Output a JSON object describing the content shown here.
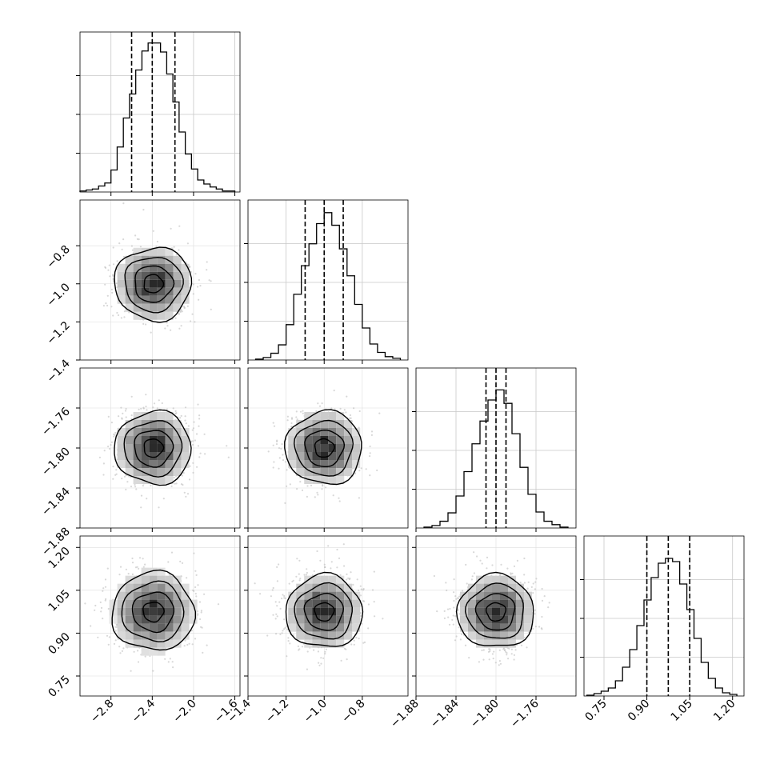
{
  "chart_data": {
    "type": "corner",
    "grid": true,
    "dimensions": 4,
    "parameters": [
      {
        "range": [
          -3.1,
          -1.55
        ],
        "ticks": [
          -2.8,
          -2.4,
          -2.0,
          -1.6
        ],
        "tick_labels": [
          "−2.8",
          "−2.4",
          "−2.0",
          "−1.6"
        ],
        "quantiles": [
          -2.6,
          -2.4,
          -2.18
        ],
        "hist": {
          "bin_edges": [
            -3.1,
            -3.04,
            -2.98,
            -2.92,
            -2.86,
            -2.8,
            -2.74,
            -2.68,
            -2.62,
            -2.56,
            -2.5,
            -2.44,
            -2.38,
            -2.32,
            -2.26,
            -2.2,
            -2.14,
            -2.08,
            -2.02,
            -1.96,
            -1.9,
            -1.84,
            -1.78,
            -1.72,
            -1.66,
            -1.6
          ],
          "counts": [
            1,
            2,
            3,
            6,
            9,
            22,
            45,
            74,
            98,
            122,
            141,
            149,
            149,
            140,
            118,
            90,
            60,
            38,
            23,
            12,
            8,
            5,
            3,
            1,
            1
          ],
          "ylim": [
            0,
            160
          ]
        }
      },
      {
        "range": [
          -1.4,
          -0.56
        ],
        "ticks": [
          -1.4,
          -1.2,
          -1.0,
          -0.8
        ],
        "tick_labels": [
          "−1.4",
          "−1.2",
          "−1.0",
          "−0.8"
        ],
        "quantiles": [
          -1.1,
          -1.0,
          -0.9
        ],
        "hist": {
          "bin_edges": [
            -1.36,
            -1.32,
            -1.28,
            -1.24,
            -1.2,
            -1.16,
            -1.12,
            -1.08,
            -1.04,
            -1.0,
            -0.96,
            -0.92,
            -0.88,
            -0.84,
            -0.8,
            -0.76,
            -0.72,
            -0.68,
            -0.64,
            -0.6
          ],
          "counts": [
            1,
            3,
            8,
            18,
            42,
            78,
            112,
            138,
            162,
            175,
            160,
            132,
            100,
            66,
            38,
            19,
            9,
            4,
            2
          ],
          "ylim": [
            0,
            190
          ]
        }
      },
      {
        "range": [
          -1.88,
          -1.72
        ],
        "ticks": [
          -1.88,
          -1.84,
          -1.8,
          -1.76
        ],
        "tick_labels": [
          "−1.88",
          "−1.84",
          "−1.80",
          "−1.76"
        ],
        "quantiles": [
          -1.81,
          -1.8,
          -1.79
        ],
        "hist": {
          "bin_edges": [
            -1.872,
            -1.864,
            -1.856,
            -1.848,
            -1.84,
            -1.832,
            -1.824,
            -1.816,
            -1.808,
            -1.8,
            -1.792,
            -1.784,
            -1.776,
            -1.768,
            -1.76,
            -1.752,
            -1.744,
            -1.736,
            -1.728
          ],
          "counts": [
            1,
            3,
            8,
            18,
            38,
            67,
            100,
            127,
            152,
            164,
            148,
            112,
            72,
            40,
            19,
            8,
            4,
            1
          ],
          "ylim": [
            0,
            190
          ]
        }
      },
      {
        "range": [
          0.68,
          1.24
        ],
        "ticks": [
          0.75,
          0.9,
          1.05,
          1.2
        ],
        "tick_labels": [
          "0.75",
          "0.90",
          "1.05",
          "1.20"
        ],
        "quantiles": [
          0.9,
          0.975,
          1.05
        ],
        "hist": {
          "bin_edges": [
            0.69,
            0.715,
            0.74,
            0.765,
            0.79,
            0.815,
            0.84,
            0.865,
            0.89,
            0.915,
            0.94,
            0.965,
            0.99,
            1.015,
            1.04,
            1.065,
            1.09,
            1.115,
            1.14,
            1.165,
            1.19,
            1.215
          ],
          "counts": [
            1,
            3,
            6,
            10,
            19,
            36,
            58,
            88,
            120,
            148,
            166,
            172,
            168,
            140,
            108,
            72,
            42,
            22,
            10,
            4,
            2
          ],
          "ylim": [
            0,
            200
          ]
        }
      }
    ],
    "pairs": [
      {
        "row": 1,
        "col": 0,
        "center": [
          -2.39,
          -1.0
        ],
        "spread": [
          0.2,
          0.1
        ]
      },
      {
        "row": 2,
        "col": 0,
        "center": [
          -2.39,
          -1.8
        ],
        "spread": [
          0.2,
          0.01
        ]
      },
      {
        "row": 2,
        "col": 1,
        "center": [
          -1.0,
          -1.8
        ],
        "spread": [
          0.1,
          0.01
        ]
      },
      {
        "row": 3,
        "col": 0,
        "center": [
          -2.39,
          0.975
        ],
        "spread": [
          0.2,
          0.075
        ]
      },
      {
        "row": 3,
        "col": 1,
        "center": [
          -1.0,
          0.975
        ],
        "spread": [
          0.1,
          0.075
        ]
      },
      {
        "row": 3,
        "col": 2,
        "center": [
          -1.8,
          0.975
        ],
        "spread": [
          0.01,
          0.075
        ]
      }
    ],
    "contour_levels_sigma": [
      0.5,
      1.0,
      1.5,
      2.0
    ]
  }
}
